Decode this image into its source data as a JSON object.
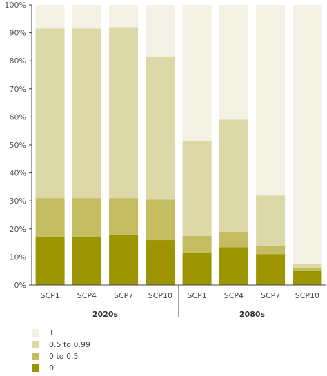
{
  "chart_data": {
    "type": "bar",
    "stacked": true,
    "categories": [
      "SCP1",
      "SCP4",
      "SCP7",
      "SCP10",
      "SCP1",
      "SCP4",
      "SCP7",
      "SCP10"
    ],
    "groups": [
      {
        "label": "2020s",
        "categories": [
          0,
          1,
          2,
          3
        ]
      },
      {
        "label": "2080s",
        "categories": [
          4,
          5,
          6,
          7
        ]
      }
    ],
    "series": [
      {
        "name": "0",
        "color": "#9c9400",
        "values": [
          17,
          17,
          18,
          16,
          11.5,
          13.5,
          11,
          5
        ]
      },
      {
        "name": "0 to 0.5",
        "color": "#c4bc60",
        "values": [
          14,
          14,
          13,
          14.5,
          6,
          5.5,
          3,
          1
        ]
      },
      {
        "name": "0.5 to 0.99",
        "color": "#ddd8a8",
        "values": [
          60.5,
          60.5,
          61,
          51,
          34,
          40,
          18,
          1.5
        ]
      },
      {
        "name": "1",
        "color": "#f4f2e4",
        "values": [
          8.5,
          8.5,
          8,
          18.5,
          48.5,
          41,
          68,
          92.5
        ]
      }
    ],
    "yticks": [
      "0%",
      "10%",
      "20%",
      "30%",
      "40%",
      "50%",
      "60%",
      "70%",
      "80%",
      "90%",
      "100%"
    ],
    "ylim": [
      0,
      100
    ],
    "grid": false,
    "legend": [
      "1",
      "0.5 to 0.99",
      "0 to 0.5",
      "0"
    ],
    "legend_position": "bottom-left"
  }
}
